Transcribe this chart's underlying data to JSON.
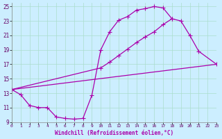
{
  "xlabel": "Windchill (Refroidissement éolien,°C)",
  "bg_color": "#cceeff",
  "grid_color": "#aaddcc",
  "line_color": "#aa00aa",
  "xlim": [
    0,
    23
  ],
  "ylim": [
    9,
    25.5
  ],
  "xticks": [
    0,
    1,
    2,
    3,
    4,
    5,
    6,
    7,
    8,
    9,
    10,
    11,
    12,
    13,
    14,
    15,
    16,
    17,
    18,
    19,
    20,
    21,
    22,
    23
  ],
  "yticks": [
    9,
    11,
    13,
    15,
    17,
    19,
    21,
    23,
    25
  ],
  "curve1_x": [
    0,
    1,
    2,
    3,
    4,
    5,
    6,
    7,
    8,
    9,
    10,
    11,
    12,
    13,
    14,
    15,
    16,
    17,
    18,
    19,
    20,
    21,
    23
  ],
  "curve1_y": [
    13.5,
    12.8,
    11.3,
    11.0,
    11.0,
    9.7,
    9.5,
    9.4,
    9.5,
    12.7,
    19.0,
    21.5,
    23.1,
    23.6,
    24.5,
    24.7,
    25.0,
    24.8,
    23.3,
    23.0,
    21.0,
    18.8,
    17.0
  ],
  "curve2_x": [
    0,
    23
  ],
  "curve2_y": [
    13.5,
    17.0
  ],
  "curve3_x": [
    0,
    10,
    11,
    12,
    13,
    14,
    15,
    16,
    17,
    18
  ],
  "curve3_y": [
    13.5,
    16.5,
    17.3,
    18.2,
    19.1,
    20.0,
    20.8,
    21.5,
    22.5,
    23.3
  ]
}
